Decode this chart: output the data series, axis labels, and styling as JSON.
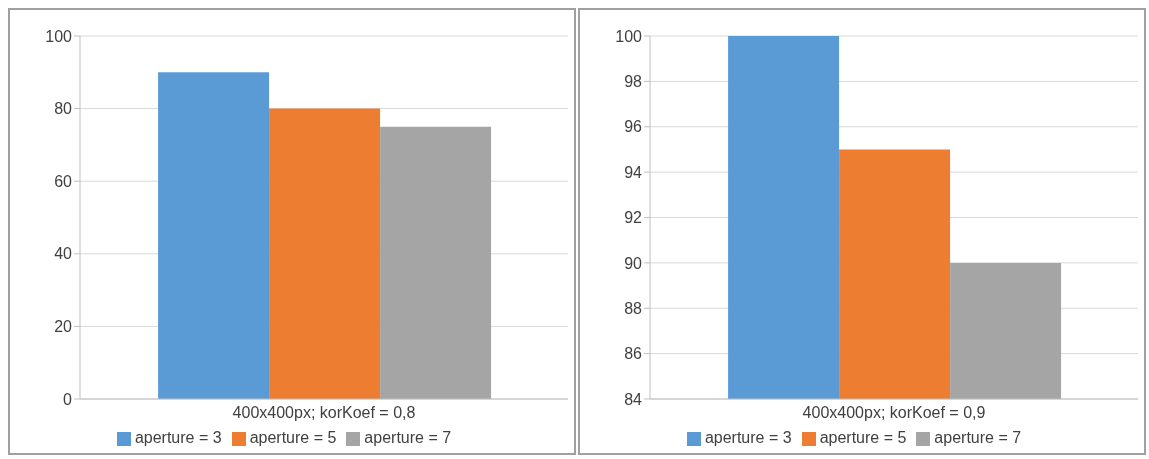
{
  "chart_data": [
    {
      "type": "bar",
      "categories": [
        "400x400px; korKoef = 0,8"
      ],
      "series": [
        {
          "name": "aperture = 3",
          "color": "#5b9bd5",
          "values": [
            90
          ]
        },
        {
          "name": "aperture = 5",
          "color": "#ed7d31",
          "values": [
            80
          ]
        },
        {
          "name": "aperture = 7",
          "color": "#a5a5a5",
          "values": [
            75
          ]
        }
      ],
      "ylim": [
        0,
        100
      ],
      "yticks": [
        0,
        20,
        40,
        60,
        80,
        100
      ],
      "grid": "y",
      "legend": "bottom"
    },
    {
      "type": "bar",
      "categories": [
        "400x400px; korKoef = 0,9"
      ],
      "series": [
        {
          "name": "aperture = 3",
          "color": "#5b9bd5",
          "values": [
            100
          ]
        },
        {
          "name": "aperture = 5",
          "color": "#ed7d31",
          "values": [
            95
          ]
        },
        {
          "name": "aperture = 7",
          "color": "#a5a5a5",
          "values": [
            90
          ]
        }
      ],
      "ylim": [
        84,
        100
      ],
      "yticks": [
        84,
        86,
        88,
        90,
        92,
        94,
        96,
        98,
        100
      ],
      "grid": "y",
      "legend": "bottom"
    }
  ]
}
